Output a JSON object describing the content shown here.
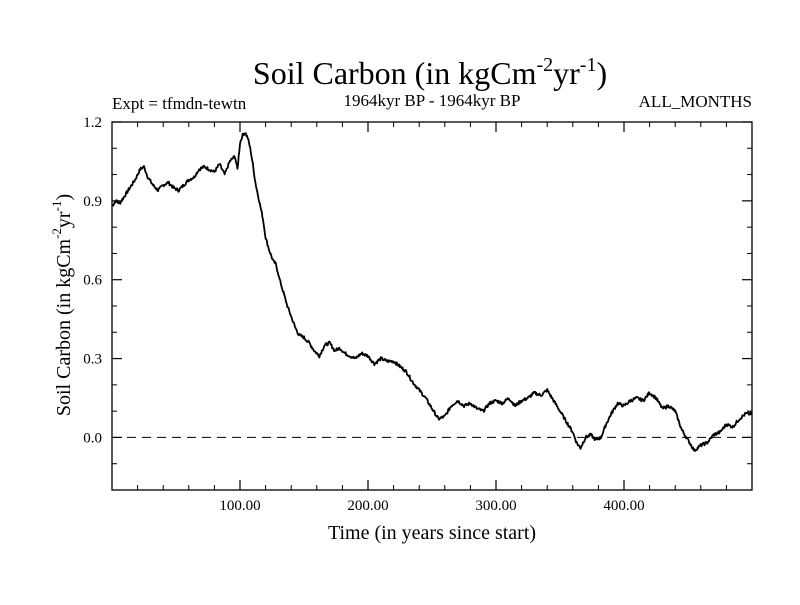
{
  "chart_data": {
    "type": "line",
    "title": {
      "main": "Soil Carbon (in kgCm",
      "sup1": "-2",
      "mid": "yr",
      "sup2": "-1",
      "end": ")"
    },
    "subtitle_left": "Expt = tfmdn-tewtn",
    "subtitle_center": "1964kyr BP - 1964kyr BP",
    "subtitle_right": "ALL_MONTHS",
    "xlabel": "Time (in years since start)",
    "ylabel": {
      "main": "Soil Carbon (in kgCm",
      "sup1": "-2",
      "mid": "yr",
      "sup2": "-1",
      "end": ")"
    },
    "xlim": [
      0,
      500
    ],
    "ylim": [
      -0.2,
      1.2
    ],
    "x_ticks": [
      100,
      200,
      300,
      400
    ],
    "x_tick_labels": [
      "100.00",
      "200.00",
      "300.00",
      "400.00"
    ],
    "y_ticks": [
      0.0,
      0.3,
      0.6,
      0.9,
      1.2
    ],
    "y_tick_labels": [
      "0.0",
      "0.3",
      "0.6",
      "0.9",
      "1.2"
    ],
    "reference_line": {
      "y": 0.0,
      "style": "dashed"
    },
    "series": [
      {
        "name": "Soil Carbon",
        "x": [
          0,
          3,
          6,
          10,
          14,
          18,
          22,
          25,
          28,
          32,
          36,
          40,
          44,
          48,
          52,
          56,
          60,
          64,
          68,
          72,
          76,
          80,
          84,
          88,
          92,
          96,
          98,
          100,
          102,
          104,
          106,
          108,
          110,
          112,
          115,
          118,
          120,
          123,
          126,
          128,
          131,
          134,
          137,
          140,
          143,
          146,
          150,
          154,
          158,
          162,
          166,
          170,
          174,
          178,
          182,
          186,
          190,
          195,
          200,
          205,
          210,
          215,
          220,
          225,
          230,
          235,
          240,
          245,
          250,
          255,
          260,
          265,
          270,
          275,
          280,
          285,
          290,
          295,
          300,
          305,
          310,
          315,
          320,
          325,
          330,
          335,
          340,
          345,
          350,
          355,
          360,
          363,
          366,
          370,
          374,
          378,
          382,
          386,
          390,
          395,
          400,
          405,
          410,
          415,
          420,
          425,
          430,
          435,
          440,
          445,
          450,
          455,
          460,
          465,
          470,
          475,
          480,
          485,
          490,
          495,
          500
        ],
        "y": [
          0.88,
          0.9,
          0.89,
          0.92,
          0.95,
          0.98,
          1.02,
          1.03,
          0.99,
          0.96,
          0.94,
          0.96,
          0.97,
          0.95,
          0.94,
          0.96,
          0.98,
          0.99,
          1.02,
          1.03,
          1.02,
          1.01,
          1.04,
          1.0,
          1.05,
          1.07,
          1.02,
          1.12,
          1.15,
          1.16,
          1.14,
          1.1,
          1.04,
          0.97,
          0.9,
          0.83,
          0.76,
          0.71,
          0.67,
          0.66,
          0.6,
          0.55,
          0.5,
          0.46,
          0.42,
          0.39,
          0.38,
          0.36,
          0.33,
          0.31,
          0.35,
          0.36,
          0.33,
          0.34,
          0.32,
          0.31,
          0.3,
          0.32,
          0.31,
          0.28,
          0.3,
          0.29,
          0.29,
          0.27,
          0.25,
          0.21,
          0.18,
          0.15,
          0.11,
          0.07,
          0.08,
          0.12,
          0.14,
          0.12,
          0.13,
          0.11,
          0.1,
          0.13,
          0.14,
          0.13,
          0.15,
          0.12,
          0.14,
          0.15,
          0.17,
          0.16,
          0.18,
          0.14,
          0.1,
          0.06,
          0.02,
          -0.02,
          -0.04,
          0.0,
          0.01,
          -0.01,
          0.0,
          0.05,
          0.09,
          0.13,
          0.12,
          0.14,
          0.15,
          0.14,
          0.17,
          0.15,
          0.11,
          0.12,
          0.1,
          0.03,
          -0.01,
          -0.05,
          -0.03,
          -0.02,
          0.01,
          0.02,
          0.05,
          0.04,
          0.07,
          0.09,
          0.09
        ]
      }
    ]
  }
}
